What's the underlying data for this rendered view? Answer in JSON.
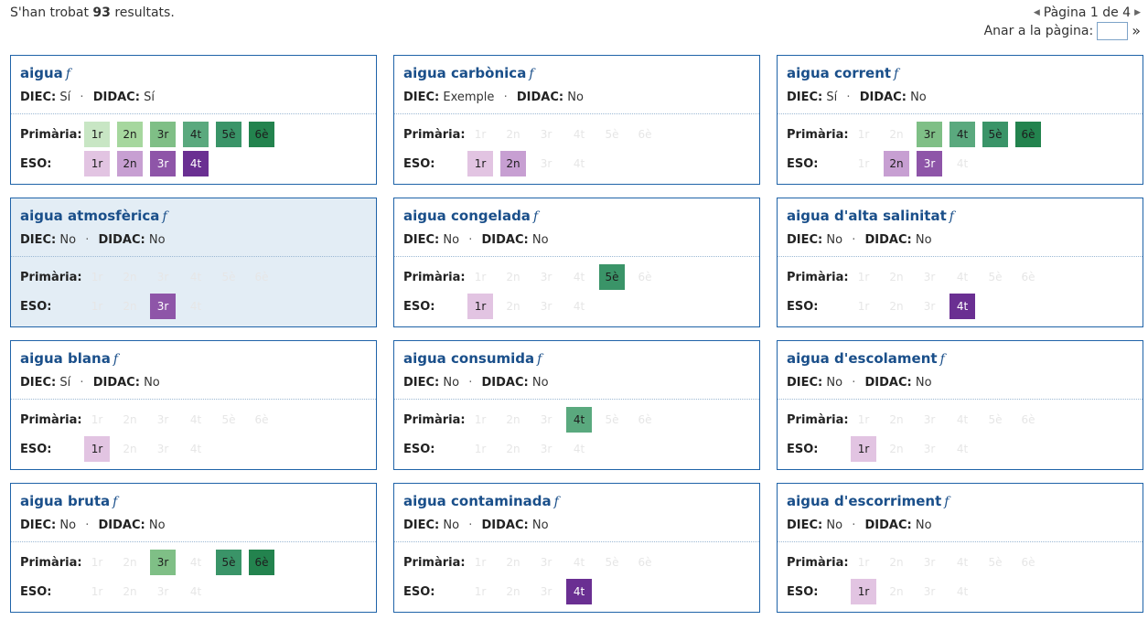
{
  "results": {
    "prefix": "S'han trobat",
    "count": "93",
    "suffix": "resultats."
  },
  "pagination": {
    "label": "Pàgina 1 de 4",
    "goto_label": "Anar a la pàgina:",
    "goto_value": "",
    "go_glyph": "»"
  },
  "level_labels": {
    "primaria": "Primària:",
    "eso": "ESO:"
  },
  "primaria_tiles": [
    "1r",
    "2n",
    "3r",
    "4t",
    "5è",
    "6è"
  ],
  "eso_tiles": [
    "1r",
    "2n",
    "3r",
    "4t"
  ],
  "colors": {
    "primaria": [
      "#c8e6c4",
      "#a6d79e",
      "#7fbf86",
      "#5aa97e",
      "#3a9468",
      "#23834e"
    ],
    "eso": [
      "#e2c4e2",
      "#c79fd2",
      "#8e55a8",
      "#6a2f92"
    ]
  },
  "entries": [
    {
      "word": "aigua",
      "gender": "f",
      "diec": "Sí",
      "didac": "Sí",
      "primaria": [
        1,
        1,
        1,
        1,
        1,
        1
      ],
      "eso": [
        1,
        1,
        1,
        1
      ],
      "highlight": false
    },
    {
      "word": "aigua carbònica",
      "gender": "f",
      "diec": "Exemple",
      "didac": "No",
      "primaria": [
        0,
        0,
        0,
        0,
        0,
        0
      ],
      "eso": [
        1,
        1,
        0,
        0
      ],
      "highlight": false
    },
    {
      "word": "aigua corrent",
      "gender": "f",
      "diec": "Sí",
      "didac": "No",
      "primaria": [
        0,
        0,
        1,
        1,
        1,
        1
      ],
      "eso": [
        0,
        1,
        1,
        0
      ],
      "highlight": false
    },
    {
      "word": "aigua atmosfèrica",
      "gender": "f",
      "diec": "No",
      "didac": "No",
      "primaria": [
        0,
        0,
        0,
        0,
        0,
        0
      ],
      "eso": [
        0,
        0,
        1,
        0
      ],
      "highlight": true
    },
    {
      "word": "aigua congelada",
      "gender": "f",
      "diec": "No",
      "didac": "No",
      "primaria": [
        0,
        0,
        0,
        0,
        1,
        0
      ],
      "eso": [
        1,
        0,
        0,
        0
      ],
      "highlight": false
    },
    {
      "word": "aigua d'alta salinitat",
      "gender": "f",
      "diec": "No",
      "didac": "No",
      "primaria": [
        0,
        0,
        0,
        0,
        0,
        0
      ],
      "eso": [
        0,
        0,
        0,
        1
      ],
      "highlight": false
    },
    {
      "word": "aigua blana",
      "gender": "f",
      "diec": "Sí",
      "didac": "No",
      "primaria": [
        0,
        0,
        0,
        0,
        0,
        0
      ],
      "eso": [
        1,
        0,
        0,
        0
      ],
      "highlight": false
    },
    {
      "word": "aigua consumida",
      "gender": "f",
      "diec": "No",
      "didac": "No",
      "primaria": [
        0,
        0,
        0,
        1,
        0,
        0
      ],
      "eso": [
        0,
        0,
        0,
        0
      ],
      "highlight": false
    },
    {
      "word": "aigua d'escolament",
      "gender": "f",
      "diec": "No",
      "didac": "No",
      "primaria": [
        0,
        0,
        0,
        0,
        0,
        0
      ],
      "eso": [
        1,
        0,
        0,
        0
      ],
      "highlight": false
    },
    {
      "word": "aigua bruta",
      "gender": "f",
      "diec": "No",
      "didac": "No",
      "primaria": [
        0,
        0,
        1,
        0,
        1,
        1
      ],
      "eso": [
        0,
        0,
        0,
        0
      ],
      "highlight": false
    },
    {
      "word": "aigua contaminada",
      "gender": "f",
      "diec": "No",
      "didac": "No",
      "primaria": [
        0,
        0,
        0,
        0,
        0,
        0
      ],
      "eso": [
        0,
        0,
        0,
        1
      ],
      "highlight": false
    },
    {
      "word": "aigua d'escorriment",
      "gender": "f",
      "diec": "No",
      "didac": "No",
      "primaria": [
        0,
        0,
        0,
        0,
        0,
        0
      ],
      "eso": [
        1,
        0,
        0,
        0
      ],
      "highlight": false
    }
  ],
  "meta_labels": {
    "diec": "DIEC:",
    "didac": "DIDAC:"
  }
}
